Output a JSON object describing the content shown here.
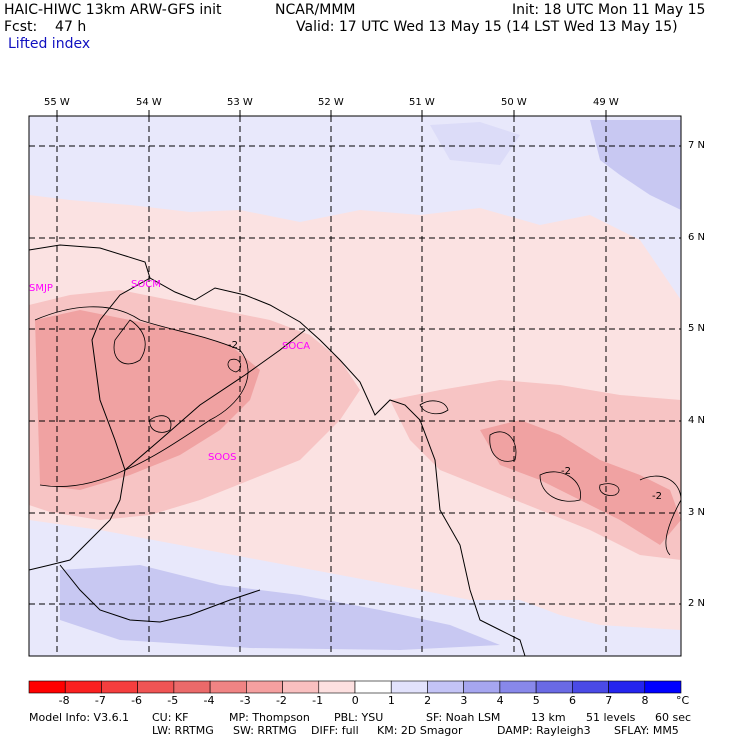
{
  "header": {
    "model_title": "HAIC-HIWC 13km ARW-GFS init",
    "center": "NCAR/MMM",
    "init": "Init: 18 UTC Mon 11 May 15",
    "fcst": "Fcst:    47 h",
    "valid": "Valid: 17 UTC Wed 13 May 15 (14 LST Wed 13 May 15)",
    "field": "Lifted index"
  },
  "map": {
    "lon_labels": [
      "55 W",
      "54 W",
      "53 W",
      "52 W",
      "51 W",
      "50 W",
      "49 W"
    ],
    "lat_labels": [
      "7 N",
      "6 N",
      "5 N",
      "4 N",
      "3 N",
      "2 N"
    ],
    "stations": [
      "SMJP",
      "SOCM",
      "SOCA",
      "SOOS"
    ],
    "contour_labels": [
      "-2",
      "-2",
      "-2"
    ],
    "colors": {
      "ocean_neutral": "#fbe2e2",
      "light_blue": "#e8e8fb",
      "mid_blue": "#c4c4f2",
      "light_red": "#f7c4c4",
      "mid_red": "#f0a2a2",
      "grid": "#000000",
      "station": "#ff00ff"
    }
  },
  "colorbar": {
    "ticks": [
      "-8",
      "-7",
      "-6",
      "-5",
      "-4",
      "-3",
      "-2",
      "-1",
      "0",
      "1",
      "2",
      "3",
      "4",
      "5",
      "6",
      "7",
      "8"
    ],
    "unit": "°C",
    "colors": [
      "#ff0000",
      "#fb2020",
      "#f53e3e",
      "#f05454",
      "#eb6a6a",
      "#f08484",
      "#f5a0a0",
      "#f9c0c0",
      "#fde0e0",
      "#ffffff",
      "#e2e2fc",
      "#c4c4f6",
      "#a6a6f0",
      "#8888ea",
      "#6a6ae4",
      "#4a4ae6",
      "#2424ee",
      "#0000ff"
    ]
  },
  "model_info": {
    "line1": [
      "Model Info: V3.6.1",
      "CU: KF",
      "MP: Thompson",
      "PBL: YSU",
      "SF: Noah LSM",
      "13 km",
      "51 levels",
      "60 sec"
    ],
    "line2": [
      "LW: RRTMG",
      "SW: RRTMG",
      "DIFF: full",
      "KM: 2D Smagor",
      "DAMP: Rayleigh3",
      "SFLAY: MM5"
    ]
  }
}
